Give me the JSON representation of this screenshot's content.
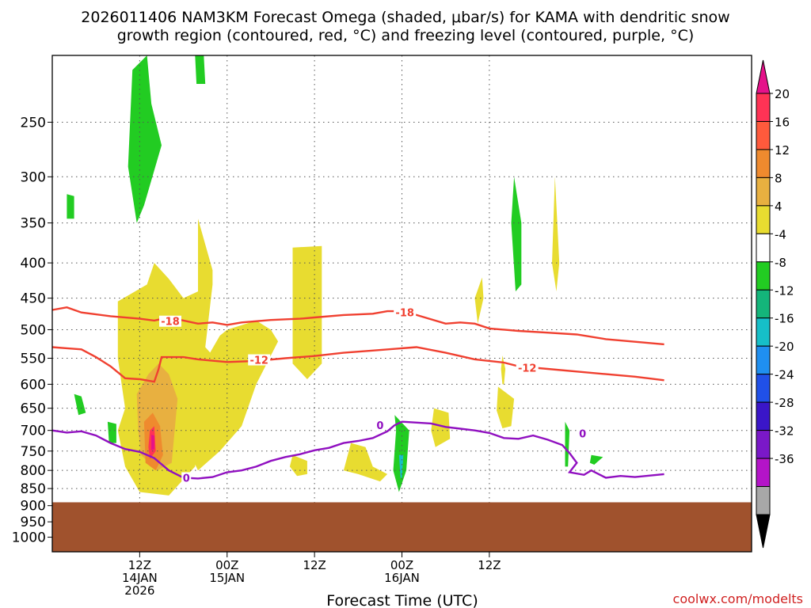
{
  "chart_data": {
    "type": "contour",
    "title_line1": "2026011406 NAM3KM Forecast Omega (shaded, μbar/s) for KAMA with dendritic snow",
    "title_line2": "growth region (contoured, red, °C) and freezing level (contoured, purple, °C)",
    "xlabel": "Forecast Time (UTC)",
    "ylabel": "",
    "y_scale": "log-pressure",
    "y_ticks": [
      250,
      300,
      350,
      400,
      450,
      500,
      550,
      600,
      650,
      700,
      750,
      800,
      850,
      900,
      950,
      1000
    ],
    "y_range": [
      200,
      1050
    ],
    "x_range_hours": [
      6,
      54
    ],
    "x_ticks": [
      {
        "hour": 12,
        "lines": [
          "12Z",
          "14JAN",
          "2026"
        ]
      },
      {
        "hour": 18,
        "lines": [
          "00Z",
          "15JAN"
        ]
      },
      {
        "hour": 24,
        "lines": [
          "12Z"
        ]
      },
      {
        "hour": 30,
        "lines": [
          "00Z",
          "16JAN"
        ]
      },
      {
        "hour": 36,
        "lines": [
          "12Z"
        ]
      }
    ],
    "grid": true,
    "colorbar": {
      "levels": [
        20,
        16,
        12,
        8,
        4,
        -4,
        -8,
        -12,
        -16,
        -20,
        -24,
        -28,
        -32,
        -36
      ],
      "colors": [
        "#ff3355",
        "#ff5a3c",
        "#ef8a2e",
        "#e8b040",
        "#e8dc30",
        "#ffffff",
        "#22cc22",
        "#14b57a",
        "#16bfc8",
        "#1f8ff0",
        "#2050e8",
        "#3a16c8",
        "#7a18c8",
        "#b414c8",
        "#a8a8a8"
      ],
      "top_arrow_color": "#e5128a",
      "bottom_arrow_color": "#000000"
    },
    "contours": [
      {
        "label": "-18",
        "color": "#f04030",
        "points": [
          [
            6,
            468
          ],
          [
            7,
            464
          ],
          [
            8,
            472
          ],
          [
            10,
            478
          ],
          [
            12,
            482
          ],
          [
            13,
            485
          ],
          [
            14,
            480
          ],
          [
            16,
            490
          ],
          [
            17,
            488
          ],
          [
            18,
            492
          ],
          [
            19,
            488
          ],
          [
            21,
            484
          ],
          [
            23,
            482
          ],
          [
            24,
            480
          ],
          [
            26,
            476
          ],
          [
            28,
            474
          ],
          [
            29,
            470
          ],
          [
            30,
            470
          ],
          [
            31,
            476
          ],
          [
            33,
            490
          ],
          [
            34,
            488
          ],
          [
            35,
            490
          ],
          [
            36,
            498
          ],
          [
            38,
            502
          ],
          [
            40,
            505
          ],
          [
            42,
            508
          ],
          [
            44,
            516
          ],
          [
            48,
            525
          ]
        ]
      },
      {
        "label": "-12",
        "color": "#f04030",
        "points": [
          [
            6,
            530
          ],
          [
            7,
            532
          ],
          [
            8,
            534
          ],
          [
            9,
            548
          ],
          [
            10,
            565
          ],
          [
            11,
            588
          ],
          [
            12,
            590
          ],
          [
            13,
            595
          ],
          [
            13.3,
            570
          ],
          [
            13.5,
            548
          ],
          [
            15,
            548
          ],
          [
            16,
            552
          ],
          [
            18,
            557
          ],
          [
            20,
            555
          ],
          [
            22,
            550
          ],
          [
            24,
            546
          ],
          [
            26,
            540
          ],
          [
            28,
            536
          ],
          [
            30,
            532
          ],
          [
            31,
            530
          ],
          [
            33,
            540
          ],
          [
            35,
            552
          ],
          [
            37,
            558
          ],
          [
            38,
            565
          ],
          [
            40,
            570
          ],
          [
            42,
            575
          ],
          [
            44,
            580
          ],
          [
            46,
            585
          ],
          [
            48,
            592
          ]
        ]
      },
      {
        "label": "0",
        "color": "#9010c0",
        "points": [
          [
            6,
            700
          ],
          [
            7,
            705
          ],
          [
            8,
            702
          ],
          [
            9,
            712
          ],
          [
            10,
            730
          ],
          [
            11,
            745
          ],
          [
            12,
            752
          ],
          [
            13,
            768
          ],
          [
            14,
            800
          ],
          [
            15,
            820
          ],
          [
            16,
            822
          ],
          [
            17,
            818
          ],
          [
            18,
            805
          ],
          [
            19,
            800
          ],
          [
            20,
            790
          ],
          [
            21,
            775
          ],
          [
            22,
            765
          ],
          [
            23,
            758
          ],
          [
            24,
            748
          ],
          [
            25,
            742
          ],
          [
            26,
            730
          ],
          [
            27,
            725
          ],
          [
            28,
            718
          ],
          [
            29,
            702
          ],
          [
            29.5,
            688
          ],
          [
            30,
            680
          ],
          [
            32,
            684
          ],
          [
            33,
            692
          ],
          [
            34,
            696
          ],
          [
            35,
            700
          ],
          [
            36,
            706
          ],
          [
            37,
            718
          ],
          [
            38,
            720
          ],
          [
            39,
            712
          ],
          [
            40,
            722
          ],
          [
            41,
            735
          ],
          [
            41.5,
            755
          ],
          [
            42,
            780
          ],
          [
            41.5,
            805
          ],
          [
            42.5,
            812
          ],
          [
            43,
            800
          ],
          [
            44,
            820
          ],
          [
            45,
            815
          ],
          [
            46,
            818
          ],
          [
            48,
            810
          ]
        ]
      }
    ],
    "contour_labels": [
      {
        "text": "-18",
        "hour": 14.1,
        "p": 486
      },
      {
        "text": "-12",
        "hour": 20.2,
        "p": 553
      },
      {
        "text": "-18",
        "hour": 30.2,
        "p": 472
      },
      {
        "text": "-12",
        "hour": 38.6,
        "p": 568
      },
      {
        "text": "0",
        "hour": 15.2,
        "p": 820
      },
      {
        "text": "0",
        "hour": 28.5,
        "p": 688
      },
      {
        "text": "0",
        "hour": 42.4,
        "p": 707
      }
    ],
    "omega_features": [
      {
        "color": "#e8dc30",
        "points": [
          [
            10.5,
            455
          ],
          [
            12.5,
            430
          ],
          [
            13,
            400
          ],
          [
            14,
            422
          ],
          [
            15,
            450
          ],
          [
            16,
            440
          ],
          [
            16,
            345
          ],
          [
            17,
            410
          ],
          [
            17,
            430
          ],
          [
            16.5,
            530
          ],
          [
            17.5,
            560
          ],
          [
            16.5,
            650
          ],
          [
            16,
            700
          ],
          [
            15.8,
            790
          ],
          [
            14,
            870
          ],
          [
            12,
            860
          ],
          [
            11,
            790
          ],
          [
            10.5,
            700
          ],
          [
            11,
            650
          ],
          [
            10.5,
            550
          ]
        ]
      },
      {
        "color": "#e8dc30",
        "points": [
          [
            16.5,
            555
          ],
          [
            17.5,
            510
          ],
          [
            18,
            500
          ],
          [
            20,
            485
          ],
          [
            21,
            500
          ],
          [
            21.5,
            520
          ],
          [
            20,
            600
          ],
          [
            19,
            690
          ],
          [
            17.5,
            750
          ],
          [
            16,
            800
          ],
          [
            15.5,
            760
          ],
          [
            16,
            700
          ]
        ]
      },
      {
        "color": "#e8dc30",
        "points": [
          [
            22.5,
            380
          ],
          [
            24.5,
            378
          ],
          [
            24.5,
            560
          ],
          [
            23.5,
            590
          ],
          [
            22.5,
            560
          ]
        ]
      },
      {
        "color": "#e8dc30",
        "points": [
          [
            22.5,
            760
          ],
          [
            23.5,
            775
          ],
          [
            23.5,
            810
          ],
          [
            22.8,
            815
          ],
          [
            22.3,
            790
          ]
        ]
      },
      {
        "color": "#e8dc30",
        "points": [
          [
            26.5,
            730
          ],
          [
            27.5,
            740
          ],
          [
            28,
            790
          ],
          [
            29,
            810
          ],
          [
            28.5,
            830
          ],
          [
            27,
            810
          ],
          [
            26,
            800
          ]
        ]
      },
      {
        "color": "#e8dc30",
        "points": [
          [
            32.2,
            650
          ],
          [
            33.2,
            660
          ],
          [
            33.3,
            720
          ],
          [
            32.3,
            740
          ],
          [
            32,
            700
          ]
        ]
      },
      {
        "color": "#e8dc30",
        "points": [
          [
            36.6,
            605
          ],
          [
            37.7,
            630
          ],
          [
            37.5,
            690
          ],
          [
            36.9,
            695
          ],
          [
            36.5,
            655
          ]
        ]
      },
      {
        "color": "#e8dc30",
        "points": [
          [
            36.9,
            545
          ],
          [
            37.1,
            570
          ],
          [
            37,
            600
          ],
          [
            36.9,
            600
          ],
          [
            36.8,
            570
          ]
        ]
      },
      {
        "color": "#e8dc30",
        "points": [
          [
            40.5,
            300
          ],
          [
            40.8,
            400
          ],
          [
            40.6,
            440
          ],
          [
            40.3,
            400
          ]
        ]
      },
      {
        "color": "#e8dc30",
        "points": [
          [
            35,
            450
          ],
          [
            35.5,
            420
          ],
          [
            35.6,
            450
          ],
          [
            35.2,
            490
          ]
        ]
      },
      {
        "color": "#e8b040",
        "points": [
          [
            11.8,
            620
          ],
          [
            12.6,
            580
          ],
          [
            13.3,
            560
          ],
          [
            14,
            580
          ],
          [
            14.6,
            630
          ],
          [
            14.2,
            780
          ],
          [
            13.2,
            800
          ],
          [
            12.1,
            760
          ],
          [
            11.9,
            700
          ]
        ]
      },
      {
        "color": "#ef8a2e",
        "points": [
          [
            12.3,
            680
          ],
          [
            12.9,
            660
          ],
          [
            13.4,
            690
          ],
          [
            13.6,
            760
          ],
          [
            13.1,
            800
          ],
          [
            12.4,
            780
          ]
        ]
      },
      {
        "color": "#ff3355",
        "points": [
          [
            12.7,
            700
          ],
          [
            13,
            690
          ],
          [
            13.1,
            750
          ],
          [
            12.7,
            770
          ],
          [
            12.6,
            740
          ]
        ]
      },
      {
        "color": "#e5128a",
        "points": [
          [
            12.8,
            710
          ],
          [
            13,
            712
          ],
          [
            13,
            745
          ],
          [
            12.8,
            748
          ]
        ]
      },
      {
        "color": "#22cc22",
        "points": [
          [
            11.5,
            210
          ],
          [
            12.5,
            200
          ],
          [
            12.8,
            235
          ],
          [
            13.5,
            270
          ],
          [
            12.3,
            330
          ],
          [
            11.8,
            350
          ],
          [
            11.2,
            290
          ]
        ]
      },
      {
        "color": "#22cc22",
        "points": [
          [
            7,
            318
          ],
          [
            7.5,
            320
          ],
          [
            7.5,
            345
          ],
          [
            7,
            345
          ]
        ]
      },
      {
        "color": "#22cc22",
        "points": [
          [
            15.8,
            200
          ],
          [
            16.4,
            200
          ],
          [
            16.5,
            220
          ],
          [
            15.9,
            220
          ]
        ]
      },
      {
        "color": "#22cc22",
        "points": [
          [
            7.5,
            620
          ],
          [
            8,
            625
          ],
          [
            8.3,
            660
          ],
          [
            7.8,
            665
          ]
        ]
      },
      {
        "color": "#22cc22",
        "points": [
          [
            9.8,
            680
          ],
          [
            10.4,
            685
          ],
          [
            10.4,
            730
          ],
          [
            9.9,
            730
          ]
        ]
      },
      {
        "color": "#22cc22",
        "points": [
          [
            29.5,
            665
          ],
          [
            30.5,
            700
          ],
          [
            30.3,
            800
          ],
          [
            29.8,
            860
          ],
          [
            29.4,
            800
          ],
          [
            29.6,
            700
          ]
        ]
      },
      {
        "color": "#16bfc8",
        "points": [
          [
            29.8,
            760
          ],
          [
            30.1,
            760
          ],
          [
            30,
            820
          ],
          [
            29.9,
            820
          ]
        ]
      },
      {
        "color": "#22cc22",
        "points": [
          [
            37.7,
            300
          ],
          [
            38.2,
            350
          ],
          [
            38.2,
            430
          ],
          [
            37.8,
            440
          ],
          [
            37.5,
            350
          ]
        ]
      },
      {
        "color": "#22cc22",
        "points": [
          [
            41.2,
            680
          ],
          [
            41.5,
            700
          ],
          [
            41.4,
            790
          ],
          [
            41.2,
            790
          ]
        ]
      },
      {
        "color": "#22cc22",
        "points": [
          [
            43,
            760
          ],
          [
            43.8,
            765
          ],
          [
            43.2,
            785
          ],
          [
            42.9,
            780
          ]
        ]
      }
    ],
    "surface_pressure": 890,
    "surface_color": "#a0522d"
  },
  "footer": {
    "credit": "coolwx.com/modelts"
  }
}
